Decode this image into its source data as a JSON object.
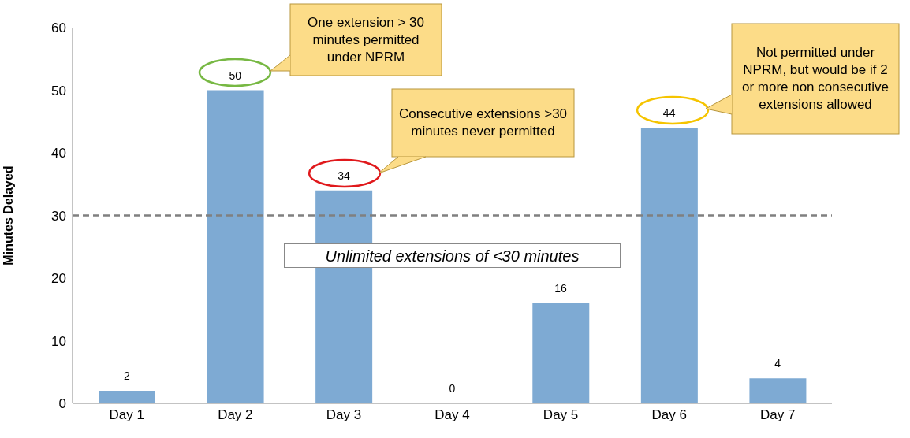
{
  "chart_data": {
    "type": "bar",
    "ylabel": "Minutes Delayed",
    "categories": [
      "Day 1",
      "Day 2",
      "Day 3",
      "Day 4",
      "Day 5",
      "Day 6",
      "Day 7"
    ],
    "values": [
      2,
      50,
      34,
      0,
      16,
      44,
      4
    ],
    "color": "#7eaad3",
    "ylim": [
      0,
      60
    ],
    "yticks": [
      0,
      10,
      20,
      30,
      40,
      50,
      60
    ],
    "grid": false,
    "data_labels": true,
    "ref_lines": [
      {
        "axis": "y",
        "value": 30,
        "label": "Unlimited extensions of <30 minutes",
        "color": "#808080",
        "line_style": "dashed"
      }
    ],
    "annotations": [
      "One extension > 30 minutes permitted under NPRM",
      "Consecutive extensions >30 minutes never permitted",
      "Not permitted under NPRM, but would be if 2 or more non consecutive extensions allowed"
    ]
  }
}
